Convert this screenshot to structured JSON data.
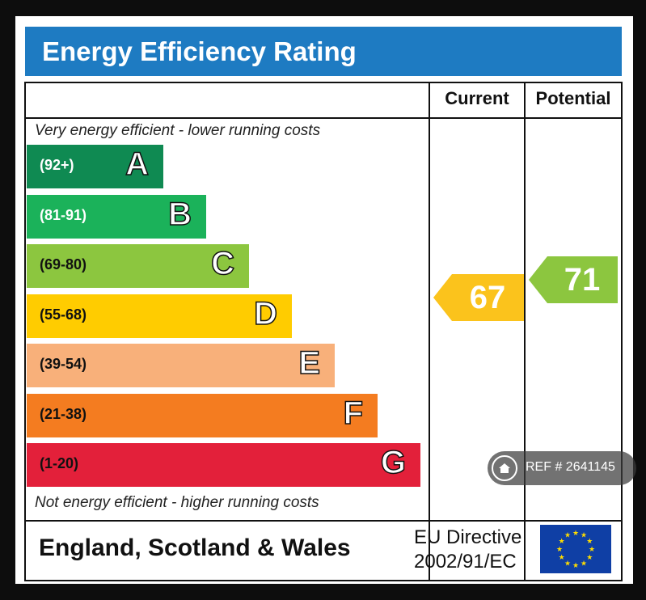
{
  "title": "Energy Efficiency Rating",
  "columns": {
    "current": "Current",
    "potential": "Potential"
  },
  "notes": {
    "top": "Very energy efficient - lower running costs",
    "bottom": "Not energy efficient - higher running costs"
  },
  "footer": {
    "region": "England, Scotland & Wales",
    "directive_line1": "EU Directive",
    "directive_line2": "2002/91/EC"
  },
  "badge": {
    "text": "REF # 2641145",
    "icon": "home-icon"
  },
  "chart_data": {
    "type": "bar",
    "categories": [
      "A",
      "B",
      "C",
      "D",
      "E",
      "F",
      "G"
    ],
    "ranges": [
      "(92+)",
      "(81-91)",
      "(69-80)",
      "(55-68)",
      "(39-54)",
      "(21-38)",
      "(1-20)"
    ],
    "colors": [
      "#0f8a52",
      "#1bb25a",
      "#8cc63f",
      "#ffcc00",
      "#f8b07a",
      "#f47c20",
      "#e3203a"
    ],
    "range_colors": [
      "#ffffff",
      "#ffffff",
      "#111111",
      "#111111",
      "#111111",
      "#111111",
      "#111111"
    ],
    "current": {
      "value": 67,
      "band": "D",
      "color": "#fbc31c"
    },
    "potential": {
      "value": 71,
      "band": "C",
      "color": "#8cc63f"
    }
  }
}
